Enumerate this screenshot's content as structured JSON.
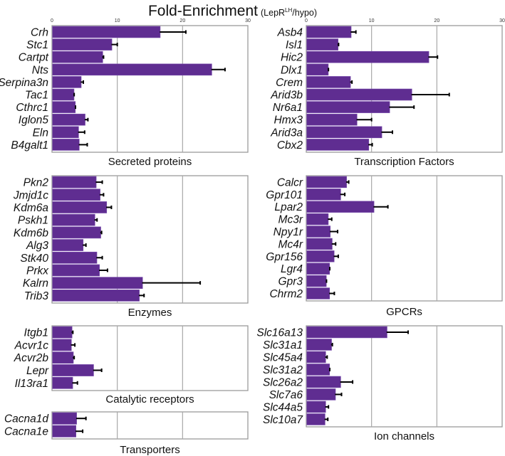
{
  "chart_data": {
    "type": "bar",
    "orientation": "horizontal",
    "title": "Fold-Enrichment",
    "subtitle_prefix": "(LepR",
    "subtitle_sup": "LH",
    "subtitle_suffix": "/hypo)",
    "xlim": [
      0,
      30
    ],
    "xticks": [
      "0",
      "10",
      "20",
      "30"
    ],
    "grid": true,
    "colors": {
      "bar": "#5f2d91",
      "error": "#000000",
      "grid": "#a8a8a8",
      "frame": "#9a9a9a"
    },
    "panels": [
      {
        "name": "Secreted proteins",
        "categories": [
          "Crh",
          "Stc1",
          "Cartpt",
          "Nts",
          "Serpina3n",
          "Tac1",
          "Cthrc1",
          "Iglon5",
          "Eln",
          "B4galt1"
        ],
        "values": [
          16.5,
          9.1,
          7.7,
          24.4,
          4.4,
          3.3,
          3.5,
          5.0,
          4.0,
          4.1
        ],
        "error_upper": [
          20.5,
          10.0,
          7.9,
          26.5,
          4.8,
          3.4,
          3.6,
          5.5,
          5.0,
          5.4
        ]
      },
      {
        "name": "Transcription Factors",
        "categories": [
          "Asb4",
          "Isl1",
          "Hic2",
          "Dlx1",
          "Crem",
          "Arid3b",
          "Nr6a1",
          "Hmx3",
          "Arid3a",
          "Cbx2"
        ],
        "values": [
          6.8,
          4.8,
          18.7,
          3.3,
          6.7,
          16.1,
          12.7,
          7.7,
          11.5,
          9.5
        ],
        "error_upper": [
          7.6,
          4.95,
          20.1,
          3.4,
          7.0,
          21.9,
          16.5,
          10.0,
          13.2,
          10.1
        ]
      },
      {
        "name": "Enzymes",
        "categories": [
          "Pkn2",
          "Jmjd1c",
          "Kdm6a",
          "Pskh1",
          "Kdm6b",
          "Alg3",
          "Stk40",
          "Prkx",
          "Kalrn",
          "Trib3"
        ],
        "values": [
          6.7,
          7.3,
          8.3,
          6.5,
          7.4,
          4.7,
          6.8,
          7.2,
          13.8,
          13.3
        ],
        "error_upper": [
          7.7,
          7.9,
          9.1,
          6.9,
          7.6,
          5.2,
          7.7,
          8.5,
          22.7,
          14.1
        ]
      },
      {
        "name": "GPCRs",
        "categories": [
          "Calcr",
          "Gpr101",
          "Lpar2",
          "Mc3r",
          "Npy1r",
          "Mc4r",
          "Gpr156",
          "Lgr4",
          "Gpr3",
          "Chrm2"
        ],
        "values": [
          6.1,
          5.2,
          10.3,
          3.3,
          3.6,
          3.9,
          4.2,
          3.5,
          3.0,
          3.5
        ],
        "error_upper": [
          6.5,
          5.9,
          12.5,
          3.9,
          4.8,
          4.5,
          4.9,
          3.6,
          3.1,
          4.3
        ]
      },
      {
        "name": "Catalytic receptors",
        "categories": [
          "Itgb1",
          "Acvr1c",
          "Acvr2b",
          "Lepr",
          "Il13ra1"
        ],
        "values": [
          3.0,
          2.9,
          3.2,
          6.3,
          3.1
        ],
        "error_upper": [
          3.2,
          3.5,
          3.4,
          7.6,
          3.9
        ]
      },
      {
        "name": "Ion channels",
        "categories": [
          "Slc16a13",
          "Slc31a1",
          "Slc45a4",
          "Slc31a2",
          "Slc26a2",
          "Slc7a6",
          "Slc44a5",
          "Slc10a7"
        ],
        "values": [
          12.3,
          3.8,
          2.9,
          3.5,
          5.2,
          4.4,
          2.9,
          2.8
        ],
        "error_upper": [
          15.6,
          4.0,
          3.2,
          3.6,
          7.1,
          5.4,
          3.4,
          3.3
        ]
      },
      {
        "name": "Transporters",
        "categories": [
          "Cacna1d",
          "Cacna1e"
        ],
        "values": [
          3.7,
          3.6
        ],
        "error_upper": [
          5.2,
          4.7
        ]
      }
    ]
  }
}
